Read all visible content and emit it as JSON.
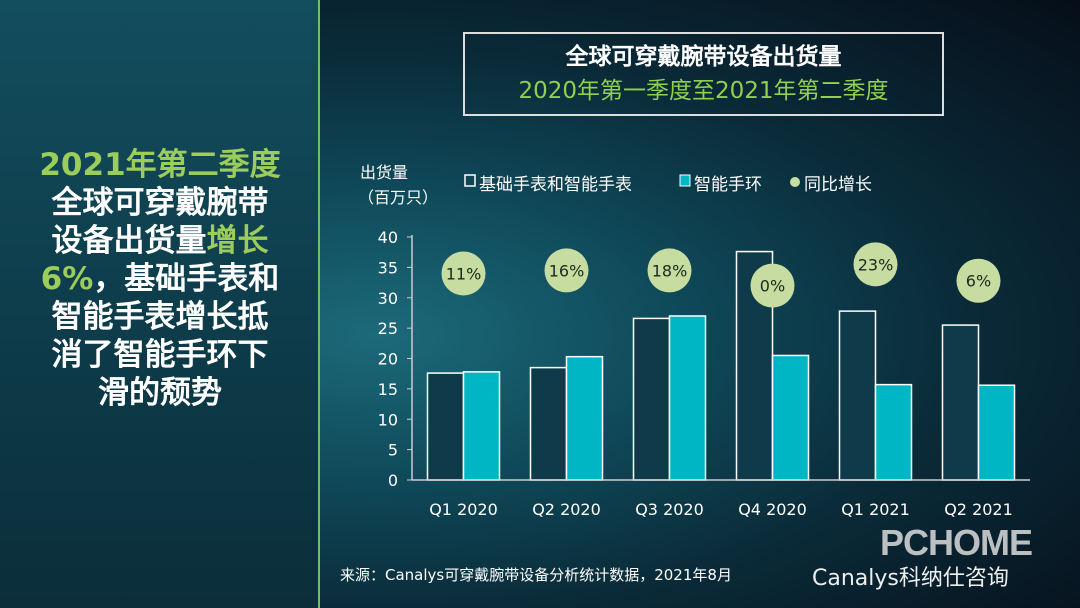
{
  "headline": {
    "line1": "2021年第二季度",
    "line2": "全球可穿戴腕带",
    "line3a": "设备出货量",
    "line3b": "增长",
    "line4a": "6%",
    "line4b": "，基础手表和",
    "line5": "智能手表增长抵",
    "line6": "消了智能手环下",
    "line7": "滑的颓势"
  },
  "title": {
    "main": "全球可穿戴腕带设备出货量",
    "sub": "2020年第一季度至2021年第二季度"
  },
  "source": "来源：Canalys可穿戴腕带设备分析统计数据，2021年8月",
  "watermark": "Canalys科纳仕咨询",
  "logo": "PCHOME",
  "colors": {
    "basic": "#0e3a4a",
    "band": "#00b5c4",
    "growth": "#c7dca0",
    "accent": "#9ccc5a"
  },
  "chart_data": {
    "type": "bar",
    "title": "全球可穿戴腕带设备出货量",
    "ylabel_line1": "出货量",
    "ylabel_line2": "（百万只）",
    "categories": [
      "Q1 2020",
      "Q2 2020",
      "Q3 2020",
      "Q4 2020",
      "Q1 2021",
      "Q2 2021"
    ],
    "series": [
      {
        "name": "基础手表和智能手表",
        "values": [
          17.6,
          18.5,
          26.6,
          37.6,
          27.8,
          25.5
        ]
      },
      {
        "name": "智能手环",
        "values": [
          17.8,
          20.3,
          27.0,
          20.5,
          15.7,
          15.6
        ]
      }
    ],
    "growth": {
      "name": "同比增长",
      "labels": [
        "11%",
        "16%",
        "18%",
        "0%",
        "23%",
        "6%"
      ],
      "positions": [
        34,
        34.5,
        34.5,
        32,
        35.5,
        32.8
      ]
    },
    "yticks": [
      "0",
      "5",
      "10",
      "15",
      "20",
      "25",
      "30",
      "35",
      "40"
    ],
    "ylim": [
      0,
      40
    ],
    "grid": false,
    "legend": "top"
  }
}
